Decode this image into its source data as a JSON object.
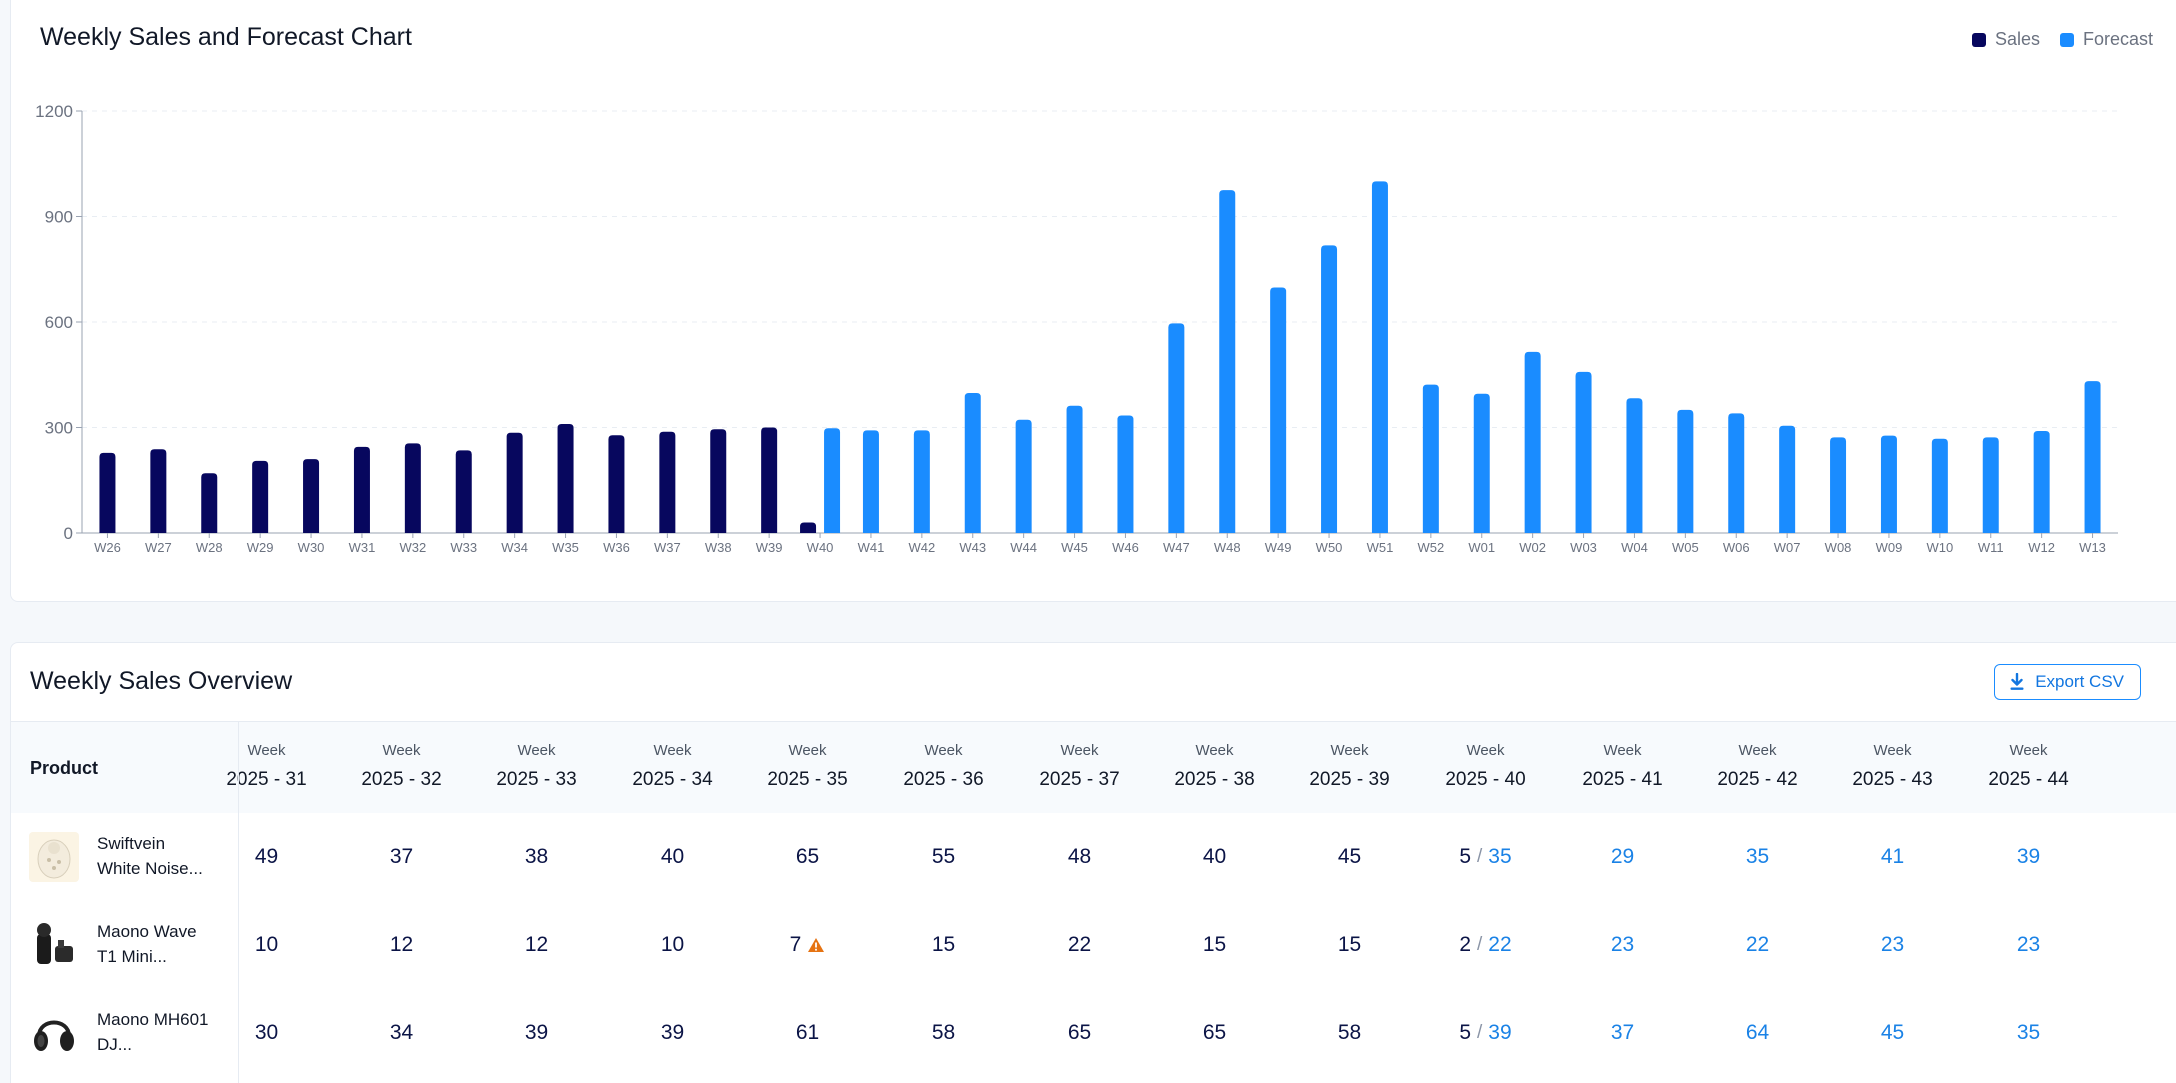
{
  "chart_title": "Weekly Sales and Forecast Chart",
  "legend": [
    {
      "label": "Sales",
      "color": "#07075e"
    },
    {
      "label": "Forecast",
      "color": "#1a8cff"
    }
  ],
  "chart_data": {
    "type": "bar",
    "title": "Weekly Sales and Forecast Chart",
    "xlabel": "",
    "ylabel": "",
    "ylim": [
      0,
      1200
    ],
    "yticks": [
      0,
      300,
      600,
      900,
      1200
    ],
    "grid": true,
    "legend_position": "top-right",
    "categories": [
      "W26",
      "W27",
      "W28",
      "W29",
      "W30",
      "W31",
      "W32",
      "W33",
      "W34",
      "W35",
      "W36",
      "W37",
      "W38",
      "W39",
      "W40",
      "W41",
      "W42",
      "W43",
      "W44",
      "W45",
      "W46",
      "W47",
      "W48",
      "W49",
      "W50",
      "W51",
      "W52",
      "W01",
      "W02",
      "W03",
      "W04",
      "W05",
      "W06",
      "W07",
      "W08",
      "W09",
      "W10",
      "W11",
      "W12",
      "W13"
    ],
    "series": [
      {
        "name": "Sales",
        "color": "#07075e",
        "values": [
          228,
          238,
          170,
          205,
          210,
          245,
          255,
          235,
          285,
          310,
          278,
          288,
          295,
          300,
          30,
          null,
          null,
          null,
          null,
          null,
          null,
          null,
          null,
          null,
          null,
          null,
          null,
          null,
          null,
          null,
          null,
          null,
          null,
          null,
          null,
          null,
          null,
          null,
          null,
          null
        ]
      },
      {
        "name": "Forecast",
        "color": "#1a8cff",
        "values": [
          null,
          null,
          null,
          null,
          null,
          null,
          null,
          null,
          null,
          null,
          null,
          null,
          null,
          null,
          298,
          292,
          292,
          398,
          322,
          362,
          334,
          596,
          975,
          698,
          818,
          1000,
          422,
          396,
          515,
          458,
          383,
          350,
          340,
          305,
          272,
          277,
          268,
          272,
          290,
          432
        ]
      }
    ]
  },
  "table": {
    "title": "Weekly Sales Overview",
    "export_label": "Export CSV",
    "product_header": "Product",
    "week_word": "Week",
    "weeks": [
      "2025 - 31",
      "2025 - 32",
      "2025 - 33",
      "2025 - 34",
      "2025 - 35",
      "2025 - 36",
      "2025 - 37",
      "2025 - 38",
      "2025 - 39",
      "2025 - 40",
      "2025 - 41",
      "2025 - 42",
      "2025 - 43",
      "2025 - 44"
    ],
    "rows": [
      {
        "name_line1": "Swiftvein",
        "name_line2": "White Noise...",
        "cells": [
          {
            "sales": "49"
          },
          {
            "sales": "37"
          },
          {
            "sales": "38"
          },
          {
            "sales": "40"
          },
          {
            "sales": "65"
          },
          {
            "sales": "55"
          },
          {
            "sales": "48"
          },
          {
            "sales": "40"
          },
          {
            "sales": "45"
          },
          {
            "sales": "5",
            "forecast": "35"
          },
          {
            "forecast": "29"
          },
          {
            "forecast": "35"
          },
          {
            "forecast": "41"
          },
          {
            "forecast": "39"
          }
        ]
      },
      {
        "name_line1": "Maono Wave",
        "name_line2": "T1 Mini...",
        "cells": [
          {
            "sales": "10"
          },
          {
            "sales": "12"
          },
          {
            "sales": "12"
          },
          {
            "sales": "10"
          },
          {
            "sales": "7",
            "warning": true
          },
          {
            "sales": "15"
          },
          {
            "sales": "22"
          },
          {
            "sales": "15"
          },
          {
            "sales": "15"
          },
          {
            "sales": "2",
            "forecast": "22"
          },
          {
            "forecast": "23"
          },
          {
            "forecast": "22"
          },
          {
            "forecast": "23"
          },
          {
            "forecast": "23"
          }
        ]
      },
      {
        "name_line1": "Maono MH601",
        "name_line2": "DJ...",
        "cells": [
          {
            "sales": "30"
          },
          {
            "sales": "34"
          },
          {
            "sales": "39"
          },
          {
            "sales": "39"
          },
          {
            "sales": "61"
          },
          {
            "sales": "58"
          },
          {
            "sales": "65"
          },
          {
            "sales": "65"
          },
          {
            "sales": "58"
          },
          {
            "sales": "5",
            "forecast": "39"
          },
          {
            "forecast": "37"
          },
          {
            "forecast": "64"
          },
          {
            "forecast": "45"
          },
          {
            "forecast": "35"
          }
        ]
      }
    ],
    "separator": "/"
  }
}
